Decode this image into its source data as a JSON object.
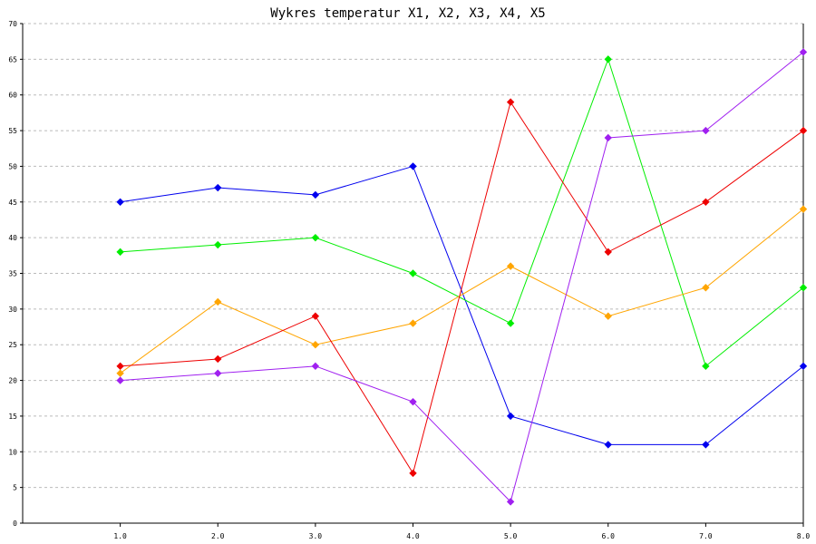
{
  "chart_data": {
    "type": "line",
    "title": "Wykres temperatur X1, X2, X3, X4, X5",
    "xlabel": "",
    "ylabel": "",
    "xlim": [
      0,
      8
    ],
    "ylim": [
      0,
      70
    ],
    "x": [
      1,
      2,
      3,
      4,
      5,
      6,
      7,
      8
    ],
    "x_tick_labels": [
      "1.0",
      "2.0",
      "3.0",
      "4.0",
      "5.0",
      "6.0",
      "7.0",
      "8.0"
    ],
    "y_ticks": [
      0,
      5,
      10,
      15,
      20,
      25,
      30,
      35,
      40,
      45,
      50,
      55,
      60,
      65,
      70
    ],
    "y_tick_labels": [
      "0",
      "5",
      "10",
      "15",
      "20",
      "25",
      "30",
      "35",
      "40",
      "45",
      "50",
      "55",
      "60",
      "65",
      "70"
    ],
    "grid": true,
    "legend": "none",
    "series": [
      {
        "color": "#0000ee",
        "values": [
          45,
          47,
          46,
          50,
          15,
          11,
          11,
          22
        ]
      },
      {
        "color": "#00ee00",
        "values": [
          38,
          39,
          40,
          35,
          28,
          65,
          22,
          33
        ]
      },
      {
        "color": "#ffa500",
        "values": [
          21,
          31,
          25,
          28,
          36,
          29,
          33,
          44
        ]
      },
      {
        "color": "#ee0000",
        "values": [
          22,
          23,
          29,
          7,
          59,
          38,
          45,
          55
        ]
      },
      {
        "color": "#a020f0",
        "values": [
          20,
          21,
          22,
          17,
          3,
          54,
          55,
          66
        ]
      }
    ]
  }
}
